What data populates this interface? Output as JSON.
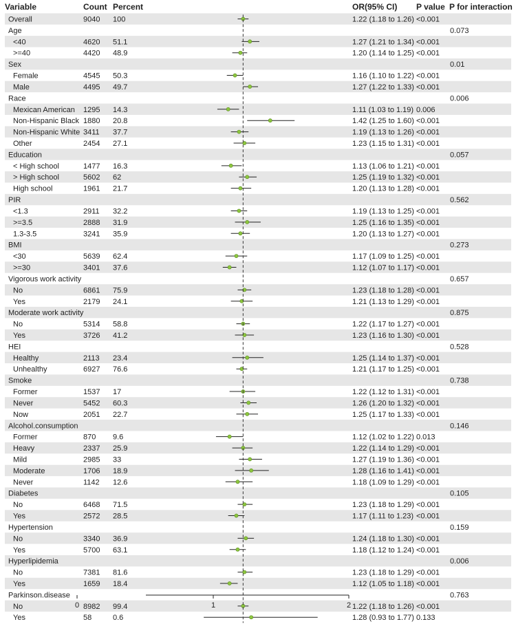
{
  "chart_data": {
    "type": "forest",
    "title": "",
    "headers": {
      "variable": "Variable",
      "count": "Count",
      "percent": "Percent",
      "or": "OR(95% CI)",
      "p": "P value",
      "p_interaction": "P for interaction"
    },
    "rows": [
      {
        "label": "Overall",
        "group": true,
        "count": "9040",
        "percent": "100",
        "or": 1.22,
        "lower": 1.18,
        "upper": 1.26,
        "or_text": "1.22 (1.18 to 1.26)",
        "p": "<0.001",
        "p_int": ""
      },
      {
        "label": "Age",
        "group": true,
        "count": "",
        "percent": "",
        "or": null,
        "lower": null,
        "upper": null,
        "or_text": "",
        "p": "",
        "p_int": "0.073"
      },
      {
        "label": "<40",
        "group": false,
        "count": "4620",
        "percent": "51.1",
        "or": 1.27,
        "lower": 1.21,
        "upper": 1.34,
        "or_text": "1.27 (1.21 to 1.34)",
        "p": "<0.001",
        "p_int": ""
      },
      {
        "label": ">=40",
        "group": false,
        "count": "4420",
        "percent": "48.9",
        "or": 1.2,
        "lower": 1.14,
        "upper": 1.25,
        "or_text": "1.20 (1.14 to 1.25)",
        "p": "<0.001",
        "p_int": ""
      },
      {
        "label": "Sex",
        "group": true,
        "count": "",
        "percent": "",
        "or": null,
        "lower": null,
        "upper": null,
        "or_text": "",
        "p": "",
        "p_int": "0.01"
      },
      {
        "label": "Female",
        "group": false,
        "count": "4545",
        "percent": "50.3",
        "or": 1.16,
        "lower": 1.1,
        "upper": 1.22,
        "or_text": "1.16 (1.10 to 1.22)",
        "p": "<0.001",
        "p_int": ""
      },
      {
        "label": "Male",
        "group": false,
        "count": "4495",
        "percent": "49.7",
        "or": 1.27,
        "lower": 1.22,
        "upper": 1.33,
        "or_text": "1.27 (1.22 to 1.33)",
        "p": "<0.001",
        "p_int": ""
      },
      {
        "label": "Race",
        "group": true,
        "count": "",
        "percent": "",
        "or": null,
        "lower": null,
        "upper": null,
        "or_text": "",
        "p": "",
        "p_int": "0.006"
      },
      {
        "label": "Mexican American",
        "group": false,
        "count": "1295",
        "percent": "14.3",
        "or": 1.11,
        "lower": 1.03,
        "upper": 1.19,
        "or_text": "1.11 (1.03 to 1.19)",
        "p": "0.006",
        "p_int": ""
      },
      {
        "label": "Non-Hispanic Black",
        "group": false,
        "count": "1880",
        "percent": "20.8",
        "or": 1.42,
        "lower": 1.25,
        "upper": 1.6,
        "or_text": "1.42 (1.25 to 1.60)",
        "p": "<0.001",
        "p_int": ""
      },
      {
        "label": "Non-Hispanic White",
        "group": false,
        "count": "3411",
        "percent": "37.7",
        "or": 1.19,
        "lower": 1.13,
        "upper": 1.26,
        "or_text": "1.19 (1.13 to 1.26)",
        "p": "<0.001",
        "p_int": ""
      },
      {
        "label": "Other",
        "group": false,
        "count": "2454",
        "percent": "27.1",
        "or": 1.23,
        "lower": 1.15,
        "upper": 1.31,
        "or_text": "1.23 (1.15 to 1.31)",
        "p": "<0.001",
        "p_int": ""
      },
      {
        "label": "Education",
        "group": true,
        "count": "",
        "percent": "",
        "or": null,
        "lower": null,
        "upper": null,
        "or_text": "",
        "p": "",
        "p_int": "0.057"
      },
      {
        "label": "< High school",
        "group": false,
        "count": "1477",
        "percent": "16.3",
        "or": 1.13,
        "lower": 1.06,
        "upper": 1.21,
        "or_text": "1.13 (1.06 to 1.21)",
        "p": "<0.001",
        "p_int": ""
      },
      {
        "label": "> High school",
        "group": false,
        "count": "5602",
        "percent": "62",
        "or": 1.25,
        "lower": 1.19,
        "upper": 1.32,
        "or_text": "1.25 (1.19 to 1.32)",
        "p": "<0.001",
        "p_int": ""
      },
      {
        "label": "High school",
        "group": false,
        "count": "1961",
        "percent": "21.7",
        "or": 1.2,
        "lower": 1.13,
        "upper": 1.28,
        "or_text": "1.20 (1.13 to 1.28)",
        "p": "<0.001",
        "p_int": ""
      },
      {
        "label": "PIR",
        "group": true,
        "count": "",
        "percent": "",
        "or": null,
        "lower": null,
        "upper": null,
        "or_text": "",
        "p": "",
        "p_int": "0.562"
      },
      {
        "label": "<1.3",
        "group": false,
        "count": "2911",
        "percent": "32.2",
        "or": 1.19,
        "lower": 1.13,
        "upper": 1.25,
        "or_text": "1.19 (1.13 to 1.25)",
        "p": "<0.001",
        "p_int": ""
      },
      {
        "label": ">=3.5",
        "group": false,
        "count": "2888",
        "percent": "31.9",
        "or": 1.25,
        "lower": 1.16,
        "upper": 1.35,
        "or_text": "1.25 (1.16 to 1.35)",
        "p": "<0.001",
        "p_int": ""
      },
      {
        "label": "1.3-3.5",
        "group": false,
        "count": "3241",
        "percent": "35.9",
        "or": 1.2,
        "lower": 1.13,
        "upper": 1.27,
        "or_text": "1.20 (1.13 to 1.27)",
        "p": "<0.001",
        "p_int": ""
      },
      {
        "label": "BMI",
        "group": true,
        "count": "",
        "percent": "",
        "or": null,
        "lower": null,
        "upper": null,
        "or_text": "",
        "p": "",
        "p_int": "0.273"
      },
      {
        "label": "<30",
        "group": false,
        "count": "5639",
        "percent": "62.4",
        "or": 1.17,
        "lower": 1.09,
        "upper": 1.25,
        "or_text": "1.17 (1.09 to 1.25)",
        "p": "<0.001",
        "p_int": ""
      },
      {
        "label": ">=30",
        "group": false,
        "count": "3401",
        "percent": "37.6",
        "or": 1.12,
        "lower": 1.07,
        "upper": 1.17,
        "or_text": "1.12 (1.07 to 1.17)",
        "p": "<0.001",
        "p_int": ""
      },
      {
        "label": "Vigorous work activity",
        "group": true,
        "count": "",
        "percent": "",
        "or": null,
        "lower": null,
        "upper": null,
        "or_text": "",
        "p": "",
        "p_int": "0.657"
      },
      {
        "label": "No",
        "group": false,
        "count": "6861",
        "percent": "75.9",
        "or": 1.23,
        "lower": 1.18,
        "upper": 1.28,
        "or_text": "1.23 (1.18 to 1.28)",
        "p": "<0.001",
        "p_int": ""
      },
      {
        "label": "Yes",
        "group": false,
        "count": "2179",
        "percent": "24.1",
        "or": 1.21,
        "lower": 1.13,
        "upper": 1.29,
        "or_text": "1.21 (1.13 to 1.29)",
        "p": "<0.001",
        "p_int": ""
      },
      {
        "label": "Moderate work activity",
        "group": true,
        "count": "",
        "percent": "",
        "or": null,
        "lower": null,
        "upper": null,
        "or_text": "",
        "p": "",
        "p_int": "0.875"
      },
      {
        "label": "No",
        "group": false,
        "count": "5314",
        "percent": "58.8",
        "or": 1.22,
        "lower": 1.17,
        "upper": 1.27,
        "or_text": "1.22 (1.17 to 1.27)",
        "p": "<0.001",
        "p_int": ""
      },
      {
        "label": "Yes",
        "group": false,
        "count": "3726",
        "percent": "41.2",
        "or": 1.23,
        "lower": 1.16,
        "upper": 1.3,
        "or_text": "1.23 (1.16 to 1.30)",
        "p": "<0.001",
        "p_int": ""
      },
      {
        "label": "HEI",
        "group": true,
        "count": "",
        "percent": "",
        "or": null,
        "lower": null,
        "upper": null,
        "or_text": "",
        "p": "",
        "p_int": "0.528"
      },
      {
        "label": "Healthy",
        "group": false,
        "count": "2113",
        "percent": "23.4",
        "or": 1.25,
        "lower": 1.14,
        "upper": 1.37,
        "or_text": "1.25 (1.14 to 1.37)",
        "p": "<0.001",
        "p_int": ""
      },
      {
        "label": "Unhealthy",
        "group": false,
        "count": "6927",
        "percent": "76.6",
        "or": 1.21,
        "lower": 1.17,
        "upper": 1.25,
        "or_text": "1.21 (1.17 to 1.25)",
        "p": "<0.001",
        "p_int": ""
      },
      {
        "label": "Smoke",
        "group": true,
        "count": "",
        "percent": "",
        "or": null,
        "lower": null,
        "upper": null,
        "or_text": "",
        "p": "",
        "p_int": "0.738"
      },
      {
        "label": "Former",
        "group": false,
        "count": "1537",
        "percent": "17",
        "or": 1.22,
        "lower": 1.12,
        "upper": 1.31,
        "or_text": "1.22 (1.12 to 1.31)",
        "p": "<0.001",
        "p_int": ""
      },
      {
        "label": "Never",
        "group": false,
        "count": "5452",
        "percent": "60.3",
        "or": 1.26,
        "lower": 1.2,
        "upper": 1.32,
        "or_text": "1.26 (1.20 to 1.32)",
        "p": "<0.001",
        "p_int": ""
      },
      {
        "label": "Now",
        "group": false,
        "count": "2051",
        "percent": "22.7",
        "or": 1.25,
        "lower": 1.17,
        "upper": 1.33,
        "or_text": "1.25 (1.17 to 1.33)",
        "p": "<0.001",
        "p_int": ""
      },
      {
        "label": "Alcohol.consumption",
        "group": true,
        "count": "",
        "percent": "",
        "or": null,
        "lower": null,
        "upper": null,
        "or_text": "",
        "p": "",
        "p_int": "0.146"
      },
      {
        "label": "Former",
        "group": false,
        "count": "870",
        "percent": "9.6",
        "or": 1.12,
        "lower": 1.02,
        "upper": 1.22,
        "or_text": "1.12 (1.02 to 1.22)",
        "p": "0.013",
        "p_int": ""
      },
      {
        "label": "Heavy",
        "group": false,
        "count": "2337",
        "percent": "25.9",
        "or": 1.22,
        "lower": 1.14,
        "upper": 1.29,
        "or_text": "1.22 (1.14 to 1.29)",
        "p": "<0.001",
        "p_int": ""
      },
      {
        "label": "Mild",
        "group": false,
        "count": "2985",
        "percent": "33",
        "or": 1.27,
        "lower": 1.19,
        "upper": 1.36,
        "or_text": "1.27 (1.19 to 1.36)",
        "p": "<0.001",
        "p_int": ""
      },
      {
        "label": "Moderate",
        "group": false,
        "count": "1706",
        "percent": "18.9",
        "or": 1.28,
        "lower": 1.16,
        "upper": 1.41,
        "or_text": "1.28 (1.16 to 1.41)",
        "p": "<0.001",
        "p_int": ""
      },
      {
        "label": "Never",
        "group": false,
        "count": "1142",
        "percent": "12.6",
        "or": 1.18,
        "lower": 1.09,
        "upper": 1.29,
        "or_text": "1.18 (1.09 to 1.29)",
        "p": "<0.001",
        "p_int": ""
      },
      {
        "label": "Diabetes",
        "group": true,
        "count": "",
        "percent": "",
        "or": null,
        "lower": null,
        "upper": null,
        "or_text": "",
        "p": "",
        "p_int": "0.105"
      },
      {
        "label": "No",
        "group": false,
        "count": "6468",
        "percent": "71.5",
        "or": 1.23,
        "lower": 1.18,
        "upper": 1.29,
        "or_text": "1.23 (1.18 to 1.29)",
        "p": "<0.001",
        "p_int": ""
      },
      {
        "label": "Yes",
        "group": false,
        "count": "2572",
        "percent": "28.5",
        "or": 1.17,
        "lower": 1.11,
        "upper": 1.23,
        "or_text": "1.17 (1.11 to 1.23)",
        "p": "<0.001",
        "p_int": ""
      },
      {
        "label": "Hypertension",
        "group": true,
        "count": "",
        "percent": "",
        "or": null,
        "lower": null,
        "upper": null,
        "or_text": "",
        "p": "",
        "p_int": "0.159"
      },
      {
        "label": "No",
        "group": false,
        "count": "3340",
        "percent": "36.9",
        "or": 1.24,
        "lower": 1.18,
        "upper": 1.3,
        "or_text": "1.24 (1.18 to 1.30)",
        "p": "<0.001",
        "p_int": ""
      },
      {
        "label": "Yes",
        "group": false,
        "count": "5700",
        "percent": "63.1",
        "or": 1.18,
        "lower": 1.12,
        "upper": 1.24,
        "or_text": "1.18 (1.12 to 1.24)",
        "p": "<0.001",
        "p_int": ""
      },
      {
        "label": "Hyperlipidemia",
        "group": true,
        "count": "",
        "percent": "",
        "or": null,
        "lower": null,
        "upper": null,
        "or_text": "",
        "p": "",
        "p_int": "0.006"
      },
      {
        "label": "No",
        "group": false,
        "count": "7381",
        "percent": "81.6",
        "or": 1.23,
        "lower": 1.18,
        "upper": 1.29,
        "or_text": "1.23 (1.18 to 1.29)",
        "p": "<0.001",
        "p_int": ""
      },
      {
        "label": "Yes",
        "group": false,
        "count": "1659",
        "percent": "18.4",
        "or": 1.12,
        "lower": 1.05,
        "upper": 1.18,
        "or_text": "1.12 (1.05 to 1.18)",
        "p": "<0.001",
        "p_int": ""
      },
      {
        "label": "Parkinson.disease",
        "group": true,
        "count": "",
        "percent": "",
        "or": null,
        "lower": null,
        "upper": null,
        "or_text": "",
        "p": "",
        "p_int": "0.763"
      },
      {
        "label": "No",
        "group": false,
        "count": "8982",
        "percent": "99.4",
        "or": 1.22,
        "lower": 1.18,
        "upper": 1.26,
        "or_text": "1.22 (1.18 to 1.26)",
        "p": "<0.001",
        "p_int": ""
      },
      {
        "label": "Yes",
        "group": false,
        "count": "58",
        "percent": "0.6",
        "or": 1.28,
        "lower": 0.93,
        "upper": 1.77,
        "or_text": "1.28 (0.93 to 1.77)",
        "p": "0.133",
        "p_int": ""
      }
    ],
    "reference_line": 1.22,
    "x_axis": {
      "range": [
        0,
        2
      ],
      "ticks": [
        {
          "value": 0,
          "label": "0",
          "position": "left-margin"
        },
        {
          "value": 1,
          "label": "1"
        },
        {
          "value": 2,
          "label": "2"
        }
      ]
    },
    "colors": {
      "shaded_row": "#e6e6e6",
      "point": "#8dc63f",
      "point_stroke": "#5a8a22",
      "ci_line": "#222222",
      "reference_line": "#333333",
      "text": "#222222"
    }
  }
}
